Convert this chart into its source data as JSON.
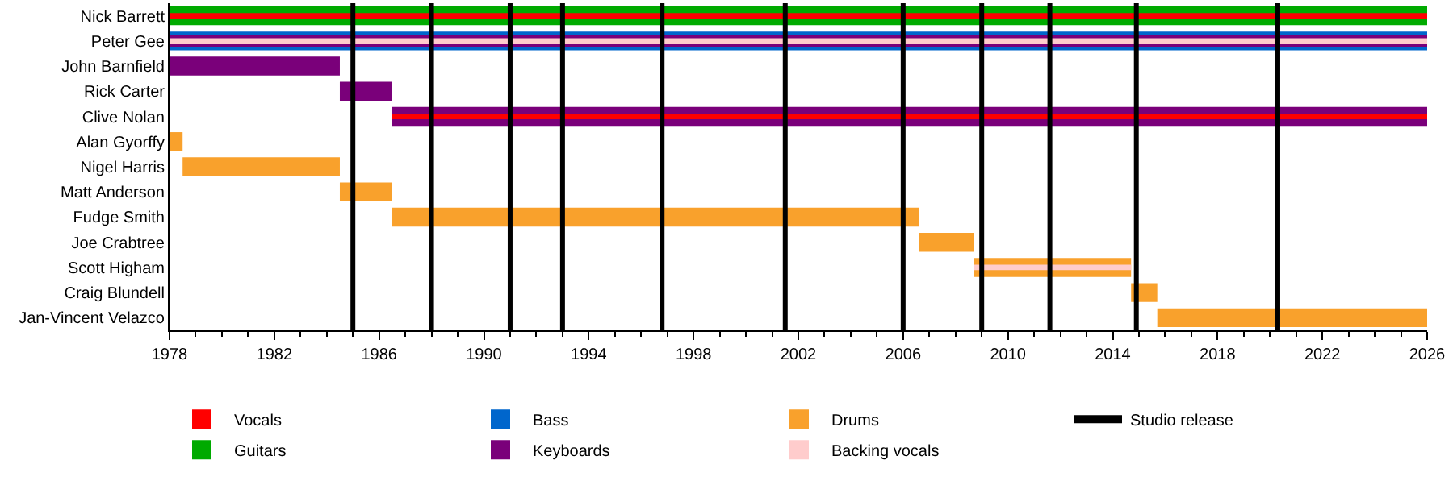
{
  "chart_data": {
    "type": "bar",
    "orientation": "horizontal",
    "categories": [
      "Nick Barrett",
      "Peter Gee",
      "John Barnfield",
      "Rick Carter",
      "Clive Nolan",
      "Alan Gyorffy",
      "Nigel Harris",
      "Matt Anderson",
      "Fudge Smith",
      "Joe Crabtree",
      "Scott Higham",
      "Craig Blundell",
      "Jan-Vincent Velazco"
    ],
    "series": [
      {
        "name": "Vocals",
        "color": "#ff0000",
        "base": [
          1978,
          null,
          null,
          null,
          1986.5,
          null,
          null,
          null,
          null,
          null,
          null,
          null,
          null
        ],
        "values": [
          48,
          null,
          null,
          null,
          39.5,
          null,
          null,
          null,
          null,
          null,
          null,
          null,
          null
        ]
      },
      {
        "name": "Guitars",
        "color": "#00aa00",
        "base": [
          1978,
          null,
          null,
          null,
          null,
          null,
          null,
          null,
          null,
          null,
          null,
          null,
          null
        ],
        "values": [
          48,
          null,
          null,
          null,
          null,
          null,
          null,
          null,
          null,
          null,
          null,
          null,
          null
        ]
      },
      {
        "name": "Bass",
        "color": "#0066cc",
        "base": [
          null,
          1978,
          null,
          null,
          null,
          null,
          null,
          null,
          null,
          null,
          null,
          null,
          null
        ],
        "values": [
          null,
          48,
          null,
          null,
          null,
          null,
          null,
          null,
          null,
          null,
          null,
          null,
          null
        ]
      },
      {
        "name": "Keyboards",
        "color": "#7a007a",
        "base": [
          null,
          null,
          1978,
          1984.5,
          1986.5,
          null,
          null,
          null,
          null,
          null,
          null,
          null,
          null
        ],
        "values": [
          null,
          null,
          6.5,
          2,
          39.5,
          null,
          null,
          null,
          null,
          null,
          null,
          null,
          null
        ]
      },
      {
        "name": "Drums",
        "color": "#f9a12c",
        "base": [
          null,
          null,
          null,
          null,
          null,
          1978,
          1978.5,
          1984.5,
          1986.5,
          2006.6,
          2008.7,
          2014.7,
          2015.7
        ],
        "values": [
          null,
          null,
          null,
          null,
          null,
          0.5,
          6,
          2,
          20.1,
          2.1,
          6,
          1,
          10.3
        ]
      },
      {
        "name": "Backing vocals",
        "color": "#ffcccc",
        "base": [
          null,
          1978,
          null,
          null,
          null,
          null,
          null,
          null,
          null,
          null,
          2008.7,
          null,
          null
        ],
        "values": [
          null,
          48,
          null,
          null,
          null,
          null,
          null,
          null,
          null,
          null,
          6,
          null,
          null
        ]
      },
      {
        "color": "#7a007a",
        "base": [
          null,
          1978,
          null,
          null,
          null,
          null,
          null,
          null,
          null,
          null,
          null,
          null,
          null
        ],
        "values": [
          null,
          48,
          null,
          null,
          null,
          null,
          null,
          null,
          null,
          null,
          null,
          null,
          null
        ]
      }
    ],
    "ref_lines": [
      {
        "axis": "x",
        "value": 1985.0,
        "label": "Studio release",
        "color": "#000000"
      },
      {
        "axis": "x",
        "value": 1988.0,
        "color": "#000000"
      },
      {
        "axis": "x",
        "value": 1991.0,
        "color": "#000000"
      },
      {
        "axis": "x",
        "value": 1993.0,
        "color": "#000000"
      },
      {
        "axis": "x",
        "value": 1996.8,
        "color": "#000000"
      },
      {
        "axis": "x",
        "value": 2001.5,
        "color": "#000000"
      },
      {
        "axis": "x",
        "value": 2006.0,
        "color": "#000000"
      },
      {
        "axis": "x",
        "value": 2009.0,
        "color": "#000000"
      },
      {
        "axis": "x",
        "value": 2011.6,
        "color": "#000000"
      },
      {
        "axis": "x",
        "value": 2014.9,
        "color": "#000000"
      },
      {
        "axis": "x",
        "value": 2020.3,
        "color": "#000000"
      }
    ],
    "xlim": [
      1978,
      2026
    ],
    "xticks": [
      1978,
      {
        "value": 1979,
        "label": null
      },
      {
        "value": 1980,
        "label": null
      },
      {
        "value": 1981,
        "label": null
      },
      1982,
      {
        "value": 1983,
        "label": null
      },
      {
        "value": 1984,
        "label": null
      },
      {
        "value": 1985,
        "label": null
      },
      1986,
      {
        "value": 1987,
        "label": null
      },
      {
        "value": 1988,
        "label": null
      },
      {
        "value": 1989,
        "label": null
      },
      1990,
      {
        "value": 1991,
        "label": null
      },
      {
        "value": 1992,
        "label": null
      },
      {
        "value": 1993,
        "label": null
      },
      1994,
      {
        "value": 1995,
        "label": null
      },
      {
        "value": 1996,
        "label": null
      },
      {
        "value": 1997,
        "label": null
      },
      1998,
      {
        "value": 1999,
        "label": null
      },
      {
        "value": 2000,
        "label": null
      },
      {
        "value": 2001,
        "label": null
      },
      2002,
      {
        "value": 2003,
        "label": null
      },
      {
        "value": 2004,
        "label": null
      },
      {
        "value": 2005,
        "label": null
      },
      2006,
      {
        "value": 2007,
        "label": null
      },
      {
        "value": 2008,
        "label": null
      },
      {
        "value": 2009,
        "label": null
      },
      2010,
      {
        "value": 2011,
        "label": null
      },
      {
        "value": 2012,
        "label": null
      },
      {
        "value": 2013,
        "label": null
      },
      2014,
      {
        "value": 2015,
        "label": null
      },
      {
        "value": 2016,
        "label": null
      },
      {
        "value": 2017,
        "label": null
      },
      2018,
      {
        "value": 2019,
        "label": null
      },
      {
        "value": 2020,
        "label": null
      },
      {
        "value": 2021,
        "label": null
      },
      2022,
      {
        "value": 2023,
        "label": null
      },
      {
        "value": 2024,
        "label": null
      },
      {
        "value": 2025,
        "label": null
      },
      2026
    ],
    "legend": "bottom"
  }
}
